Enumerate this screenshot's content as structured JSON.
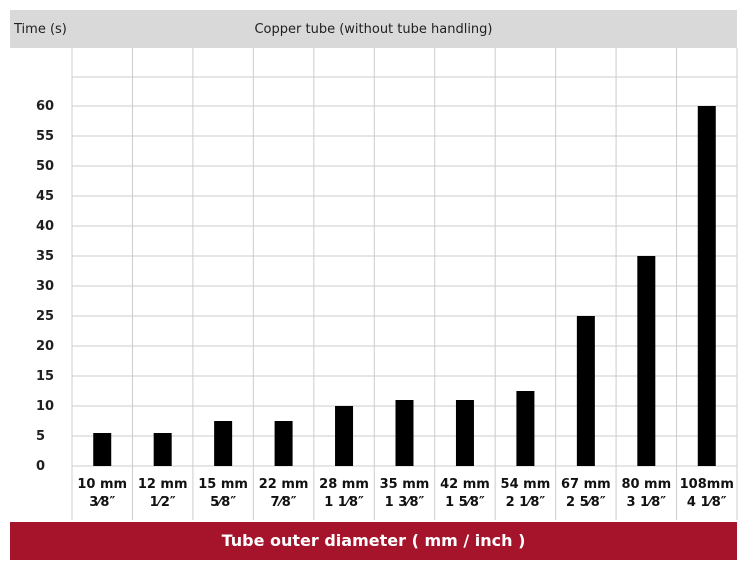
{
  "header": {
    "y_unit_label": "Time (s)",
    "subtitle": "Copper tube (without tube handling)"
  },
  "footer": {
    "x_axis_label": "Tube outer diameter ( mm / inch )"
  },
  "colors": {
    "bar": "#000000",
    "footer_bg": "#a6142b",
    "header_bg": "#d9d9d9",
    "grid": "#cccccc"
  },
  "chart_data": {
    "type": "bar",
    "title": "Copper tube (without tube handling)",
    "ylabel": "Time (s)",
    "xlabel": "Tube outer diameter ( mm / inch )",
    "categories": [
      "10 mm 3/8\"",
      "12 mm 1/2\"",
      "15 mm 5/8\"",
      "22 mm 7/8\"",
      "28 mm 1 1/8\"",
      "35 mm 1 3/8\"",
      "42 mm 1 5/8\"",
      "54 mm 2 1/8\"",
      "67 mm 2 5/8\"",
      "80 mm 3 1/8\"",
      "108 mm 4 1/8\""
    ],
    "category_mm": [
      "10 mm",
      "12 mm",
      "15 mm",
      "22 mm",
      "28 mm",
      "35 mm",
      "42 mm",
      "54 mm",
      "67 mm",
      "80 mm",
      "108mm"
    ],
    "category_inch": [
      "3⁄8″",
      "1⁄2″",
      "5⁄8″",
      "7⁄8″",
      "1 1⁄8″",
      "1 3⁄8″",
      "1 5⁄8″",
      "2 1⁄8″",
      "2 5⁄8″",
      "3 1⁄8″",
      "4 1⁄8″"
    ],
    "values": [
      5.5,
      5.5,
      7.5,
      7.5,
      10,
      11,
      11,
      12.5,
      25,
      35,
      60
    ],
    "yticks": [
      0,
      5,
      10,
      15,
      20,
      25,
      30,
      35,
      40,
      45,
      50,
      55,
      60
    ],
    "ylim": [
      0,
      60
    ],
    "grid": true,
    "legend": "none"
  }
}
